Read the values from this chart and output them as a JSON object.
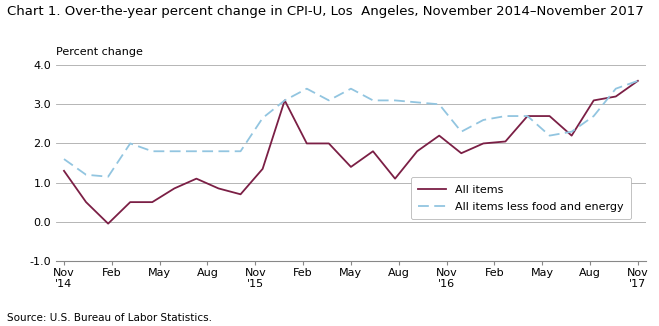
{
  "title": "Chart 1. Over-the-year percent change in CPI-U, Los  Angeles, November 2014–November 2017",
  "ylabel": "Percent change",
  "source": "Source: U.S. Bureau of Labor Statistics.",
  "ylim": [
    -1.0,
    4.0
  ],
  "yticks": [
    -1.0,
    0.0,
    1.0,
    2.0,
    3.0,
    4.0
  ],
  "all_items": [
    1.3,
    0.5,
    -0.05,
    0.5,
    0.5,
    0.85,
    1.1,
    0.85,
    0.7,
    1.35,
    3.1,
    2.0,
    2.0,
    1.4,
    1.8,
    1.1,
    1.8,
    2.2,
    1.75,
    2.0,
    2.05,
    2.7,
    2.7,
    2.2,
    3.1,
    3.2,
    3.6
  ],
  "all_items_less": [
    1.6,
    1.2,
    1.15,
    2.0,
    1.8,
    1.8,
    1.8,
    1.8,
    1.8,
    2.65,
    3.1,
    3.4,
    3.1,
    3.4,
    3.1,
    3.1,
    3.05,
    3.0,
    2.3,
    2.6,
    2.7,
    2.7,
    2.2,
    2.3,
    2.7,
    3.4,
    3.6
  ],
  "all_items_color": "#7B1F45",
  "all_items_less_color": "#92C5E0",
  "background_color": "#FFFFFF",
  "grid_color": "#AAAAAA",
  "title_fontsize": 9.5,
  "label_fontsize": 8,
  "tick_fontsize": 8,
  "source_fontsize": 7.5
}
